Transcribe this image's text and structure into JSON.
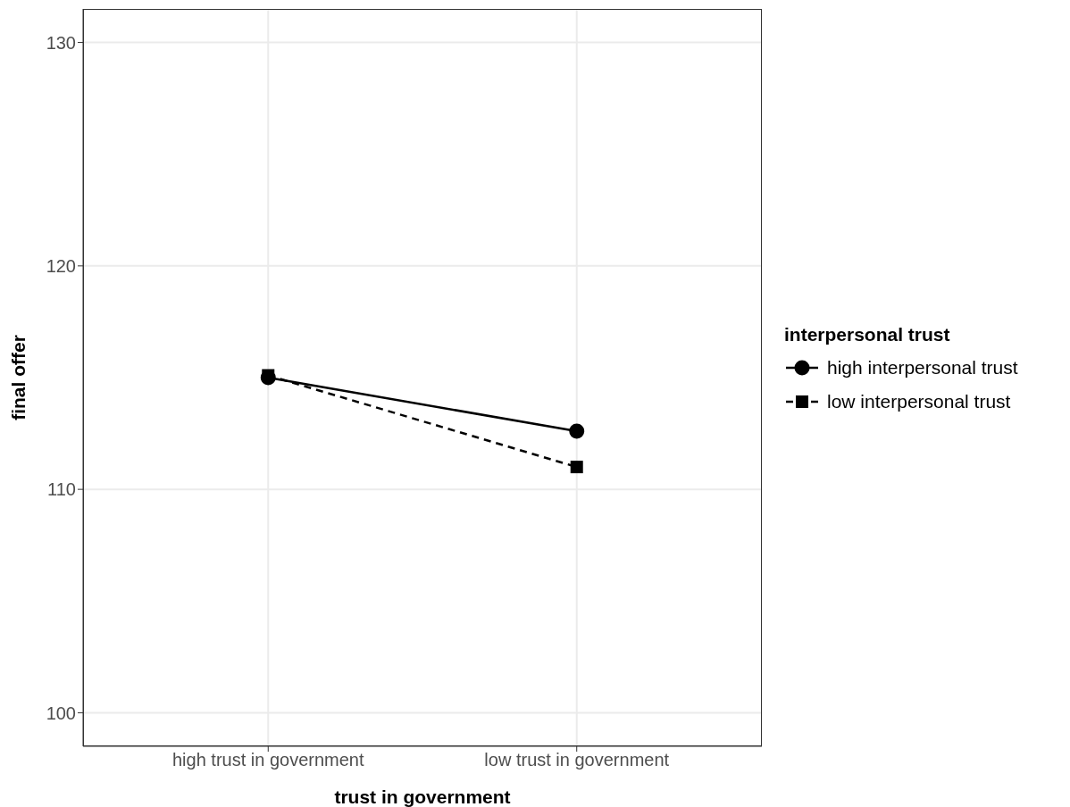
{
  "chart_data": {
    "type": "line",
    "xlabel": "trust in government",
    "ylabel": "final offer",
    "legend_title": "interpersonal trust",
    "categories": [
      "high trust in government",
      "low trust in government"
    ],
    "series": [
      {
        "name": "high interpersonal trust",
        "color": "#000000",
        "values": [
          115.0,
          112.6
        ],
        "marker": "circle",
        "line_style": "solid"
      },
      {
        "name": "low interpersonal trust",
        "color": "#000000",
        "values": [
          115.1,
          111.0
        ],
        "marker": "square",
        "line_style": "dashed"
      }
    ],
    "ylim": [
      98.5,
      131.5
    ],
    "yticks": [
      100,
      110,
      120,
      130
    ],
    "grid": true,
    "legend": "right"
  }
}
